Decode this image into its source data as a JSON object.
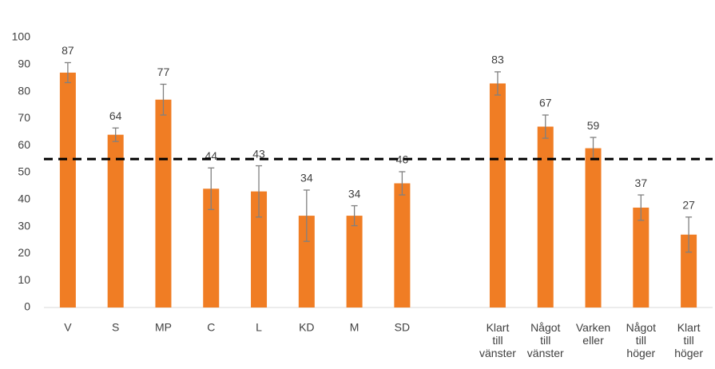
{
  "chart_data": {
    "type": "bar",
    "categories": [
      "V",
      "S",
      "MP",
      "C",
      "L",
      "KD",
      "M",
      "SD",
      null,
      "Klart till vänster",
      "Något till vänster",
      "Varken eller",
      "Något till höger",
      "Klart till höger"
    ],
    "values": [
      87,
      64,
      77,
      44,
      43,
      34,
      34,
      46,
      null,
      83,
      67,
      59,
      37,
      27
    ],
    "errors": [
      3.7,
      2.5,
      5.7,
      7.7,
      9.5,
      9.5,
      3.7,
      4.3,
      null,
      4.3,
      4.3,
      4,
      4.7,
      6.5
    ],
    "color": "#f07d24",
    "error_color": "#808080",
    "reference_line": 55,
    "ylim": [
      0,
      100
    ],
    "yticks": [
      0,
      10,
      20,
      30,
      40,
      50,
      60,
      70,
      80,
      90,
      100
    ],
    "grid": false
  }
}
